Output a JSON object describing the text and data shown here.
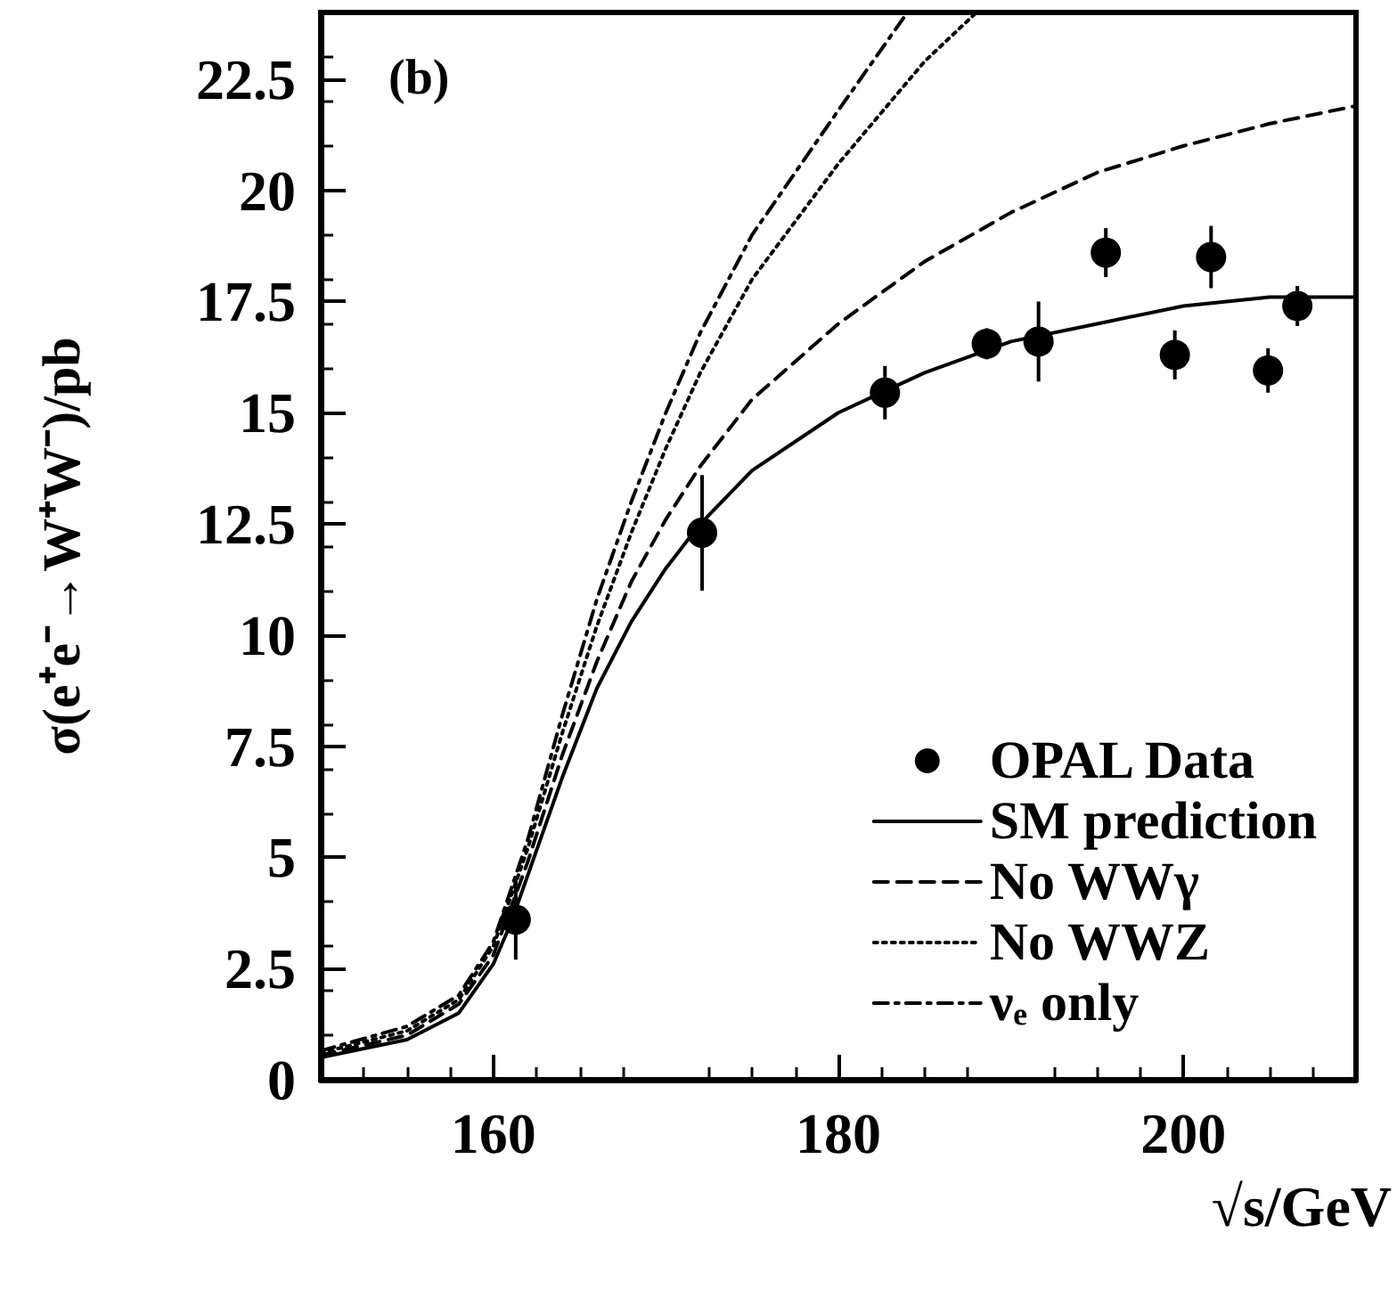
{
  "chart_data": {
    "type": "line",
    "xlabel": "√s/GeV",
    "ylabel": "σ(e⁺e⁻→W⁺W⁻)/pb",
    "annotations": [
      "(b)"
    ],
    "xlim": [
      150,
      210
    ],
    "xticks": [
      160,
      180,
      200
    ],
    "ylim": [
      0,
      24
    ],
    "yticks": [
      0,
      2.5,
      5,
      7.5,
      10,
      12.5,
      15,
      17.5,
      20,
      22.5
    ],
    "grid": false,
    "legend": "bottom right",
    "series": [
      {
        "name": "OPAL Data",
        "type": "scatter",
        "marker": "circle",
        "color": "#000000",
        "x": [
          161.3,
          172.1,
          182.7,
          188.6,
          191.6,
          195.5,
          199.5,
          201.6,
          204.9,
          206.6
        ],
        "values": [
          3.6,
          12.3,
          15.45,
          16.55,
          16.6,
          18.6,
          16.3,
          18.5,
          15.95,
          17.4
        ],
        "errors": [
          0.9,
          1.3,
          0.6,
          0.35,
          0.9,
          0.55,
          0.55,
          0.7,
          0.5,
          0.45
        ]
      },
      {
        "name": "SM prediction",
        "line_style": "solid",
        "color": "#000000",
        "x": [
          150,
          155,
          158,
          160,
          161,
          162,
          164,
          166,
          168,
          170,
          172,
          175,
          180,
          185,
          190,
          195,
          200,
          205,
          210
        ],
        "values": [
          0.5,
          0.9,
          1.5,
          2.6,
          3.5,
          4.6,
          6.8,
          8.8,
          10.3,
          11.5,
          12.5,
          13.7,
          15.0,
          15.9,
          16.6,
          17.0,
          17.4,
          17.6,
          17.6
        ]
      },
      {
        "name": "No WWγ",
        "line_style": "dashed",
        "color": "#000000",
        "x": [
          150,
          155,
          158,
          160,
          162,
          164,
          166,
          168,
          170,
          172,
          175,
          180,
          185,
          190,
          195,
          200,
          205,
          210
        ],
        "values": [
          0.55,
          1.0,
          1.7,
          2.8,
          4.9,
          7.3,
          9.4,
          11.2,
          12.6,
          13.8,
          15.3,
          17.0,
          18.4,
          19.5,
          20.4,
          21.0,
          21.5,
          21.9
        ]
      },
      {
        "name": "No WWZ",
        "line_style": "dotted",
        "color": "#000000",
        "x": [
          150,
          155,
          158,
          160,
          162,
          164,
          166,
          168,
          170,
          172,
          175,
          180,
          185,
          188
        ],
        "values": [
          0.6,
          1.1,
          1.8,
          3.0,
          5.2,
          7.8,
          10.2,
          12.3,
          14.2,
          15.9,
          18.0,
          20.6,
          22.9,
          24
        ]
      },
      {
        "name": "νₑ only",
        "line_style": "dashdot",
        "color": "#000000",
        "x": [
          150,
          155,
          158,
          160,
          162,
          164,
          166,
          168,
          170,
          172,
          175,
          180,
          184
        ],
        "values": [
          0.65,
          1.2,
          1.9,
          3.1,
          5.4,
          8.2,
          10.8,
          13.0,
          15.0,
          16.8,
          19.0,
          21.8,
          24
        ]
      }
    ]
  }
}
